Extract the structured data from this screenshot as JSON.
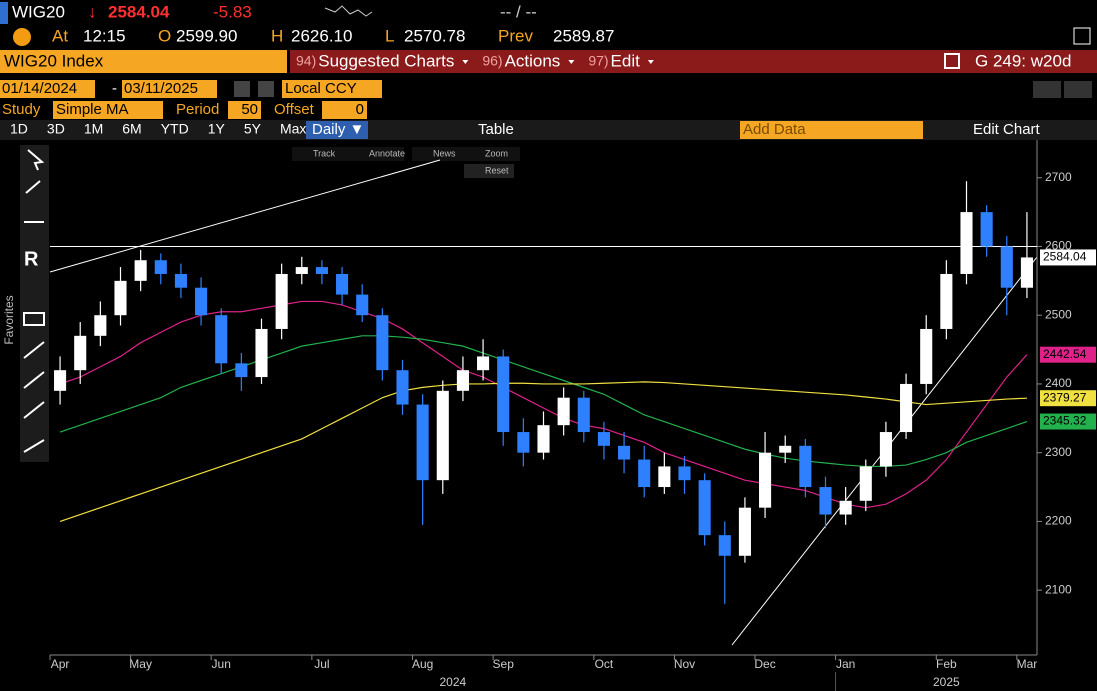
{
  "header": {
    "ticker": "WIG20",
    "arrow": "↓",
    "last": "2584.04",
    "change": "-5.83",
    "bid_ask": "-- / --",
    "at_label": "At",
    "time": "12:15",
    "open_label": "O",
    "open": "2599.90",
    "high_label": "H",
    "high": "2626.10",
    "low_label": "L",
    "low": "2570.78",
    "prev_label": "Prev",
    "prev": "2589.87"
  },
  "toolbar": {
    "security": "WIG20 Index",
    "menu": [
      {
        "num": "94)",
        "label": "Suggested Charts"
      },
      {
        "num": "96)",
        "label": "Actions"
      },
      {
        "num": "97)",
        "label": "Edit"
      }
    ],
    "right": "G 249: w20d"
  },
  "date_row": {
    "start": "01/14/2024",
    "end": "03/11/2025",
    "currency": "Local CCY"
  },
  "study_row": {
    "study_label": "Study",
    "study": "Simple MA",
    "period_label": "Period",
    "period": "50",
    "offset_label": "Offset",
    "offset": "0"
  },
  "range_row": {
    "ranges": [
      "1D",
      "3D",
      "1M",
      "6M",
      "YTD",
      "1Y",
      "5Y",
      "Max"
    ],
    "frequency": "Daily ▼",
    "table": "Table",
    "add_data": "Add Data",
    "edit_chart": "Edit Chart"
  },
  "chart_tools": [
    "Track",
    "Annotate",
    "News",
    "Zoom",
    "Reset"
  ],
  "sidebar": {
    "favorites": "Favorites"
  },
  "chart_data": {
    "type": "candlestick",
    "categories": [
      "Apr",
      null,
      null,
      null,
      "May",
      null,
      null,
      null,
      "Jun",
      null,
      null,
      null,
      null,
      "Jul",
      null,
      null,
      null,
      null,
      "Aug",
      null,
      null,
      null,
      "Sep",
      null,
      null,
      null,
      null,
      "Oct",
      null,
      null,
      null,
      "Nov",
      null,
      null,
      null,
      "Dec",
      null,
      null,
      null,
      "Jan",
      null,
      null,
      null,
      null,
      "Feb",
      null,
      null,
      null,
      "Mar"
    ],
    "years": [
      "2024",
      "2025"
    ],
    "open": [
      2390,
      2420,
      2470,
      2500,
      2550,
      2580,
      2560,
      2540,
      2500,
      2430,
      2410,
      2480,
      2560,
      2570,
      2560,
      2530,
      2500,
      2420,
      2370,
      2260,
      2390,
      2420,
      2440,
      2330,
      2300,
      2340,
      2380,
      2330,
      2310,
      2290,
      2250,
      2280,
      2260,
      2180,
      2150,
      2220,
      2300,
      2310,
      2250,
      2210,
      2230,
      2280,
      2330,
      2400,
      2480,
      2560,
      2650,
      2600,
      2540
    ],
    "high": [
      2440,
      2490,
      2520,
      2570,
      2595,
      2590,
      2575,
      2555,
      2510,
      2445,
      2495,
      2575,
      2585,
      2580,
      2570,
      2545,
      2510,
      2435,
      2385,
      2405,
      2440,
      2465,
      2450,
      2350,
      2360,
      2395,
      2390,
      2345,
      2330,
      2310,
      2300,
      2295,
      2270,
      2200,
      2235,
      2330,
      2325,
      2320,
      2265,
      2250,
      2290,
      2345,
      2415,
      2500,
      2580,
      2695,
      2660,
      2615,
      2650
    ],
    "low": [
      2370,
      2400,
      2455,
      2485,
      2535,
      2545,
      2525,
      2485,
      2415,
      2390,
      2400,
      2465,
      2545,
      2545,
      2515,
      2490,
      2405,
      2355,
      2195,
      2240,
      2375,
      2405,
      2310,
      2280,
      2290,
      2325,
      2315,
      2290,
      2270,
      2235,
      2240,
      2240,
      2165,
      2080,
      2140,
      2205,
      2285,
      2235,
      2190,
      2195,
      2215,
      2265,
      2320,
      2385,
      2465,
      2545,
      2585,
      2500,
      2525
    ],
    "close": [
      2420,
      2470,
      2500,
      2550,
      2580,
      2560,
      2540,
      2500,
      2430,
      2410,
      2480,
      2560,
      2570,
      2560,
      2530,
      2500,
      2420,
      2370,
      2260,
      2390,
      2420,
      2440,
      2330,
      2300,
      2340,
      2380,
      2330,
      2310,
      2290,
      2250,
      2280,
      2260,
      2180,
      2150,
      2220,
      2300,
      2310,
      2250,
      2210,
      2230,
      2280,
      2330,
      2400,
      2480,
      2560,
      2650,
      2600,
      2540,
      2584.04
    ],
    "up_color": "#ffffff",
    "down_color": "#2f80ff",
    "series": [
      {
        "color": "#e0218a",
        "values": [
          2400,
          2410,
          2425,
          2440,
          2460,
          2475,
          2490,
          2500,
          2505,
          2505,
          2510,
          2515,
          2520,
          2520,
          2515,
          2505,
          2495,
          2480,
          2460,
          2440,
          2420,
          2410,
          2395,
          2380,
          2365,
          2350,
          2340,
          2335,
          2325,
          2315,
          2300,
          2290,
          2280,
          2270,
          2260,
          2255,
          2250,
          2245,
          2235,
          2225,
          2220,
          2225,
          2240,
          2260,
          2290,
          2330,
          2370,
          2410,
          2442.54
        ]
      },
      {
        "color": "#22b14c",
        "values": [
          2330,
          2340,
          2350,
          2360,
          2370,
          2380,
          2395,
          2405,
          2415,
          2425,
          2435,
          2445,
          2455,
          2460,
          2465,
          2470,
          2470,
          2468,
          2465,
          2460,
          2455,
          2445,
          2435,
          2425,
          2415,
          2405,
          2395,
          2385,
          2370,
          2355,
          2345,
          2335,
          2325,
          2315,
          2305,
          2298,
          2292,
          2288,
          2285,
          2282,
          2280,
          2280,
          2282,
          2290,
          2300,
          2315,
          2325,
          2335,
          2345.32
        ]
      },
      {
        "color": "#f0e040",
        "values": [
          2200,
          2210,
          2220,
          2230,
          2240,
          2250,
          2260,
          2270,
          2280,
          2290,
          2300,
          2310,
          2320,
          2335,
          2350,
          2365,
          2380,
          2390,
          2395,
          2398,
          2400,
          2400,
          2401,
          2401,
          2400,
          2400,
          2400,
          2401,
          2402,
          2403,
          2402,
          2400,
          2398,
          2396,
          2394,
          2392,
          2390,
          2388,
          2386,
          2384,
          2381,
          2378,
          2374,
          2370,
          2372,
          2374,
          2376,
          2378,
          2379.27
        ]
      }
    ],
    "hline": 2600,
    "ylim": [
      2010,
      2752
    ],
    "yticks": [
      2100,
      2200,
      2300,
      2400,
      2500,
      2600,
      2700
    ],
    "grid": false
  }
}
